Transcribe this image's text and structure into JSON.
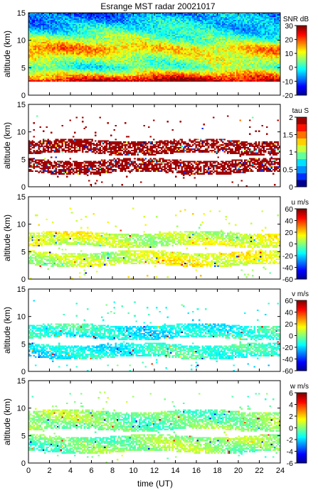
{
  "figure": {
    "title": "Esrange MST radar 20021017",
    "xlabel": "time (UT)"
  },
  "colors": {
    "jet": [
      "#00008f",
      "#0000ff",
      "#0080ff",
      "#00ffff",
      "#80ff80",
      "#ffff00",
      "#ff8000",
      "#ff0000",
      "#800000"
    ],
    "tau": [
      "#00008f",
      "#0030ff",
      "#0090ff",
      "#00e0ff",
      "#60ffa0",
      "#c8ff38",
      "#ffd000",
      "#ff7000",
      "#ff1000",
      "#a00000"
    ]
  },
  "chart_data": [
    {
      "type": "heatmap",
      "panel": "snr",
      "title": "Esrange MST radar 20021017",
      "xlabel": "",
      "ylabel": "altitude (km)",
      "colorbar_label": "SNR dB",
      "xlim": [
        0,
        24
      ],
      "ylim": [
        0,
        15
      ],
      "x_ticks": [],
      "y_ticks": [
        "0",
        "5",
        "10",
        "15"
      ],
      "colorbar_range": [
        -20,
        30
      ],
      "colorbar_ticks": [
        "-20",
        "-10",
        "0",
        "10",
        "20",
        "30"
      ],
      "colormap": "jet",
      "data_altitude_range_km": [
        2.5,
        15
      ],
      "description_profile": [
        {
          "altitude_km": 2.5,
          "value_dB": 28
        },
        {
          "altitude_km": 3.5,
          "value_dB": 18
        },
        {
          "altitude_km": 5,
          "value_dB": 2
        },
        {
          "altitude_km": 7,
          "value_dB": 10
        },
        {
          "altitude_km": 8.5,
          "value_dB": 16
        },
        {
          "altitude_km": 10,
          "value_dB": 6
        },
        {
          "altitude_km": 12,
          "value_dB": -2
        },
        {
          "altitude_km": 15,
          "value_dB": -8
        }
      ]
    },
    {
      "type": "heatmap",
      "panel": "tau",
      "xlabel": "",
      "ylabel": "altitude (km)",
      "colorbar_label": "tau S",
      "xlim": [
        0,
        24
      ],
      "ylim": [
        0,
        15
      ],
      "x_ticks": [],
      "y_ticks": [
        "0",
        "5",
        "10",
        "15"
      ],
      "colorbar_range": [
        0,
        2
      ],
      "colorbar_ticks": [
        "0",
        "0.5",
        "1",
        "1.5",
        "2"
      ],
      "colormap": "tau",
      "layers_km": [
        [
          2.5,
          5
        ],
        [
          6,
          8.5
        ]
      ],
      "dominant_value_s": 2
    },
    {
      "type": "heatmap",
      "panel": "u",
      "xlabel": "",
      "ylabel": "altitude (km)",
      "colorbar_label": "u m/s",
      "xlim": [
        0,
        24
      ],
      "ylim": [
        0,
        15
      ],
      "x_ticks": [],
      "y_ticks": [
        "0",
        "5",
        "10",
        "15"
      ],
      "colorbar_range": [
        -60,
        60
      ],
      "colorbar_ticks": [
        "-60",
        "-40",
        "-20",
        "0",
        "20",
        "40",
        "60"
      ],
      "colormap": "jet",
      "layers_km": [
        [
          2.5,
          5
        ],
        [
          6,
          8.5
        ]
      ],
      "typical_value_ms": 10
    },
    {
      "type": "heatmap",
      "panel": "v",
      "xlabel": "",
      "ylabel": "altitude (km)",
      "colorbar_label": "v m/s",
      "xlim": [
        0,
        24
      ],
      "ylim": [
        0,
        15
      ],
      "x_ticks": [],
      "y_ticks": [
        "0",
        "5",
        "10",
        "15"
      ],
      "colorbar_range": [
        -60,
        60
      ],
      "colorbar_ticks": [
        "-60",
        "-40",
        "-20",
        "0",
        "20",
        "40",
        "60"
      ],
      "colormap": "jet",
      "layers_km": [
        [
          2.5,
          5
        ],
        [
          6,
          8.5
        ]
      ],
      "typical_value_ms": -12
    },
    {
      "type": "heatmap",
      "panel": "w",
      "xlabel": "time (UT)",
      "ylabel": "altitude (km)",
      "colorbar_label": "w m/s",
      "xlim": [
        0,
        24
      ],
      "ylim": [
        0,
        15
      ],
      "x_ticks": [
        "0",
        "2",
        "4",
        "6",
        "8",
        "10",
        "12",
        "14",
        "16",
        "18",
        "20",
        "22",
        "24"
      ],
      "y_ticks": [
        "0",
        "5",
        "10",
        "15"
      ],
      "colorbar_range": [
        -6,
        6
      ],
      "colorbar_ticks": [
        "-6",
        "-4",
        "-2",
        "0",
        "2",
        "4",
        "6"
      ],
      "colormap": "jet",
      "layers_km": [
        [
          2,
          5
        ],
        [
          6,
          9.5
        ]
      ],
      "typical_value_ms": 0
    }
  ]
}
